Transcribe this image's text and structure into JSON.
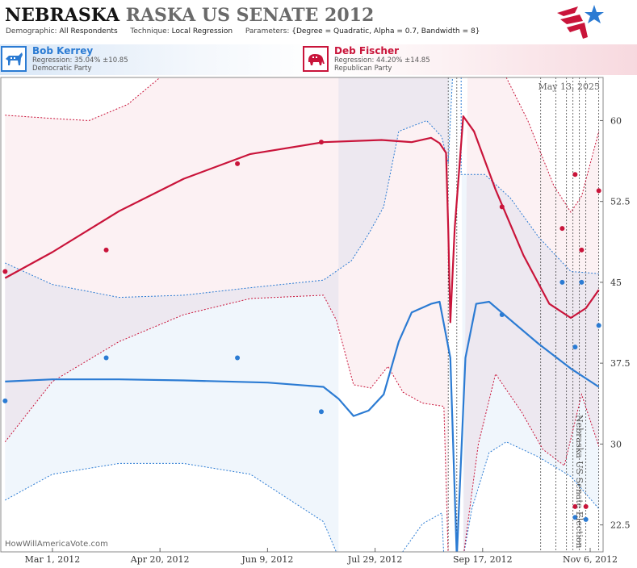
{
  "header": {
    "title_state": "NEBRASKA",
    "title_rest": "RASKA US SENATE 2012",
    "demographic_label": "Demographic:",
    "demographic_value": "All Respondents",
    "technique_label": "Technique:",
    "technique_value": "Local Regression",
    "parameters_label": "Parameters:",
    "parameters_value": "{Degree = Quadratic, Alpha = 0.7, Bandwidth = 8}"
  },
  "candidates": [
    {
      "name": "Bob Kerrey",
      "regression": "Regression: 35.04% ±10.85",
      "party": "Democratic Party",
      "icon": "donkey-icon",
      "color": "#2b7bd3"
    },
    {
      "name": "Deb Fischer",
      "regression": "Regression: 44.20% ±14.85",
      "party": "Republican Party",
      "icon": "elephant-icon",
      "color": "#c9143a"
    }
  ],
  "footer": {
    "site": "HowWillAmericaVote.com"
  },
  "chart_data": {
    "type": "scatter",
    "date_label": "May 13, 2025",
    "side_label": "Nebraska US Senate Election",
    "x_ticks": [
      "Mar 1, 2012",
      "Apr 20, 2012",
      "Jun 9, 2012",
      "Jul 29, 2012",
      "Sep 17, 2012",
      "Nov 6, 2012"
    ],
    "y_ticks": [
      "60",
      "52.5",
      "45",
      "37.5",
      "30",
      "22.5"
    ],
    "ylim": [
      20,
      64
    ],
    "xlim": [
      "2012-02-06",
      "2012-11-12"
    ],
    "grid": false,
    "series": [
      {
        "name": "Bob Kerrey",
        "color": "#2b7bd3",
        "points": [
          {
            "x": "2012-02-08",
            "y": 34.0
          },
          {
            "x": "2012-03-26",
            "y": 38.0
          },
          {
            "x": "2012-05-26",
            "y": 38.0
          },
          {
            "x": "2012-07-04",
            "y": 33.0
          },
          {
            "x": "2012-09-26",
            "y": 42.0
          },
          {
            "x": "2012-10-24",
            "y": 45.0
          },
          {
            "x": "2012-10-30",
            "y": 39.0
          },
          {
            "x": "2012-10-30",
            "y": 23.2
          },
          {
            "x": "2012-11-02",
            "y": 45.0
          },
          {
            "x": "2012-11-04",
            "y": 23.0
          },
          {
            "x": "2012-11-10",
            "y": 41.0
          }
        ],
        "trend": [
          {
            "x": "2012-02-08",
            "y": 35.8
          },
          {
            "x": "2012-03-01",
            "y": 36.0
          },
          {
            "x": "2012-04-01",
            "y": 36.0
          },
          {
            "x": "2012-05-01",
            "y": 35.9
          },
          {
            "x": "2012-06-09",
            "y": 35.7
          },
          {
            "x": "2012-07-05",
            "y": 35.3
          },
          {
            "x": "2012-07-12",
            "y": 34.2
          },
          {
            "x": "2012-07-19",
            "y": 32.6
          },
          {
            "x": "2012-07-26",
            "y": 33.1
          },
          {
            "x": "2012-08-02",
            "y": 34.6
          },
          {
            "x": "2012-08-09",
            "y": 39.5
          },
          {
            "x": "2012-08-15",
            "y": 42.2
          },
          {
            "x": "2012-08-24",
            "y": 43.0
          },
          {
            "x": "2012-08-28",
            "y": 43.2
          },
          {
            "x": "2012-09-02",
            "y": 38.0
          },
          {
            "x": "2012-09-05",
            "y": 19.5
          },
          {
            "x": "2012-09-09",
            "y": 38.0
          },
          {
            "x": "2012-09-14",
            "y": 43.0
          },
          {
            "x": "2012-09-20",
            "y": 43.2
          },
          {
            "x": "2012-09-30",
            "y": 41.5
          },
          {
            "x": "2012-10-13",
            "y": 39.3
          },
          {
            "x": "2012-10-28",
            "y": 37.0
          },
          {
            "x": "2012-11-10",
            "y": 35.3
          }
        ],
        "upper_band": [
          {
            "x": "2012-02-08",
            "y": 46.8
          },
          {
            "x": "2012-03-01",
            "y": 44.8
          },
          {
            "x": "2012-04-01",
            "y": 43.6
          },
          {
            "x": "2012-05-01",
            "y": 43.8
          },
          {
            "x": "2012-06-01",
            "y": 44.5
          },
          {
            "x": "2012-07-05",
            "y": 45.2
          },
          {
            "x": "2012-07-18",
            "y": 47.0
          },
          {
            "x": "2012-07-26",
            "y": 49.5
          },
          {
            "x": "2012-08-02",
            "y": 52.0
          },
          {
            "x": "2012-08-09",
            "y": 59.0
          },
          {
            "x": "2012-08-22",
            "y": 60.0
          },
          {
            "x": "2012-08-29",
            "y": 58.5
          },
          {
            "x": "2012-09-01",
            "y": 56.0
          },
          {
            "x": "2012-09-03",
            "y": 64.0
          }
        ],
        "lower_band": [
          {
            "x": "2012-02-08",
            "y": 24.8
          },
          {
            "x": "2012-03-01",
            "y": 27.2
          },
          {
            "x": "2012-04-01",
            "y": 28.2
          },
          {
            "x": "2012-05-01",
            "y": 28.2
          },
          {
            "x": "2012-06-01",
            "y": 27.2
          },
          {
            "x": "2012-07-05",
            "y": 22.8
          },
          {
            "x": "2012-07-12",
            "y": 19.5
          }
        ],
        "lower_band_b": [
          {
            "x": "2012-08-09",
            "y": 19.5
          },
          {
            "x": "2012-08-20",
            "y": 22.6
          },
          {
            "x": "2012-08-29",
            "y": 23.6
          },
          {
            "x": "2012-08-30",
            "y": 19.5
          }
        ],
        "band_c_upper": [
          {
            "x": "2012-09-07",
            "y": 64.0
          },
          {
            "x": "2012-09-07",
            "y": 55.0
          },
          {
            "x": "2012-09-18",
            "y": 55.0
          },
          {
            "x": "2012-09-30",
            "y": 52.8
          },
          {
            "x": "2012-10-13",
            "y": 49.2
          },
          {
            "x": "2012-10-28",
            "y": 46.0
          },
          {
            "x": "2012-11-10",
            "y": 45.8
          }
        ],
        "band_c_lower": [
          {
            "x": "2012-09-08",
            "y": 19.5
          },
          {
            "x": "2012-09-12",
            "y": 24.0
          },
          {
            "x": "2012-09-20",
            "y": 29.2
          },
          {
            "x": "2012-09-28",
            "y": 30.2
          },
          {
            "x": "2012-10-13",
            "y": 28.8
          },
          {
            "x": "2012-10-28",
            "y": 27.0
          },
          {
            "x": "2012-11-10",
            "y": 24.0
          }
        ]
      },
      {
        "name": "Deb Fischer",
        "color": "#c9143a",
        "points": [
          {
            "x": "2012-02-08",
            "y": 46.0
          },
          {
            "x": "2012-03-26",
            "y": 48.0
          },
          {
            "x": "2012-05-26",
            "y": 56.0
          },
          {
            "x": "2012-07-04",
            "y": 58.0
          },
          {
            "x": "2012-09-26",
            "y": 52.0
          },
          {
            "x": "2012-10-24",
            "y": 50.0
          },
          {
            "x": "2012-10-30",
            "y": 55.0
          },
          {
            "x": "2012-10-30",
            "y": 24.2
          },
          {
            "x": "2012-11-02",
            "y": 48.0
          },
          {
            "x": "2012-11-04",
            "y": 24.2
          },
          {
            "x": "2012-11-10",
            "y": 53.5
          }
        ],
        "trend": [
          {
            "x": "2012-02-08",
            "y": 45.4
          },
          {
            "x": "2012-03-01",
            "y": 47.8
          },
          {
            "x": "2012-04-01",
            "y": 51.6
          },
          {
            "x": "2012-05-01",
            "y": 54.6
          },
          {
            "x": "2012-06-01",
            "y": 56.9
          },
          {
            "x": "2012-07-05",
            "y": 58.0
          },
          {
            "x": "2012-08-01",
            "y": 58.2
          },
          {
            "x": "2012-08-15",
            "y": 58.0
          },
          {
            "x": "2012-08-24",
            "y": 58.4
          },
          {
            "x": "2012-08-28",
            "y": 57.9
          },
          {
            "x": "2012-08-31",
            "y": 57.0
          },
          {
            "x": "2012-09-01",
            "y": 50.0
          },
          {
            "x": "2012-09-02",
            "y": 41.3
          },
          {
            "x": "2012-09-04",
            "y": 50.0
          },
          {
            "x": "2012-09-08",
            "y": 60.4
          },
          {
            "x": "2012-09-13",
            "y": 59.0
          },
          {
            "x": "2012-09-23",
            "y": 53.6
          },
          {
            "x": "2012-10-06",
            "y": 47.5
          },
          {
            "x": "2012-10-18",
            "y": 43.0
          },
          {
            "x": "2012-10-28",
            "y": 41.7
          },
          {
            "x": "2012-11-04",
            "y": 42.6
          },
          {
            "x": "2012-11-10",
            "y": 44.3
          }
        ],
        "upper_band": [
          {
            "x": "2012-02-08",
            "y": 60.5
          },
          {
            "x": "2012-03-01",
            "y": 60.2
          },
          {
            "x": "2012-03-18",
            "y": 60.0
          },
          {
            "x": "2012-04-05",
            "y": 61.5
          },
          {
            "x": "2012-04-20",
            "y": 64.0
          }
        ],
        "lower_band": [
          {
            "x": "2012-02-08",
            "y": 30.2
          },
          {
            "x": "2012-03-01",
            "y": 35.8
          },
          {
            "x": "2012-04-01",
            "y": 39.5
          },
          {
            "x": "2012-05-01",
            "y": 42.0
          },
          {
            "x": "2012-06-01",
            "y": 43.5
          },
          {
            "x": "2012-07-05",
            "y": 43.8
          },
          {
            "x": "2012-07-11",
            "y": 41.5
          },
          {
            "x": "2012-07-19",
            "y": 35.5
          },
          {
            "x": "2012-07-27",
            "y": 35.2
          },
          {
            "x": "2012-08-04",
            "y": 37.2
          },
          {
            "x": "2012-08-11",
            "y": 34.8
          },
          {
            "x": "2012-08-20",
            "y": 33.8
          },
          {
            "x": "2012-08-30",
            "y": 33.5
          },
          {
            "x": "2012-09-01",
            "y": 19.5
          }
        ],
        "band_c_upper": [
          {
            "x": "2012-09-10",
            "y": 64.0
          },
          {
            "x": "2012-09-28",
            "y": 64.0
          },
          {
            "x": "2012-10-08",
            "y": 60.0
          },
          {
            "x": "2012-10-20",
            "y": 54.0
          },
          {
            "x": "2012-10-28",
            "y": 51.5
          },
          {
            "x": "2012-11-02",
            "y": 53.0
          },
          {
            "x": "2012-11-10",
            "y": 59.0
          }
        ],
        "band_c_lower": [
          {
            "x": "2012-09-08",
            "y": 19.5
          },
          {
            "x": "2012-09-15",
            "y": 30.0
          },
          {
            "x": "2012-09-23",
            "y": 36.5
          },
          {
            "x": "2012-10-05",
            "y": 33.0
          },
          {
            "x": "2012-10-15",
            "y": 29.5
          },
          {
            "x": "2012-10-25",
            "y": 28.0
          },
          {
            "x": "2012-11-02",
            "y": 34.6
          },
          {
            "x": "2012-11-10",
            "y": 29.8
          }
        ]
      }
    ],
    "poll_lines": [
      "2012-09-01",
      "2012-09-05",
      "2012-10-14",
      "2012-10-21",
      "2012-10-26",
      "2012-10-29",
      "2012-11-01",
      "2012-11-04",
      "2012-11-10",
      "2012-11-13"
    ]
  }
}
